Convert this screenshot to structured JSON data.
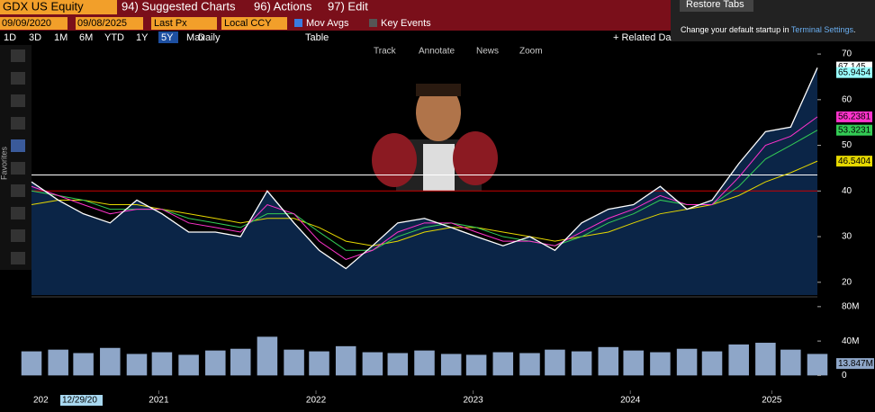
{
  "ui": {
    "ticker": "GDX US Equity",
    "menu": [
      "94) Suggested Charts",
      "96) Actions",
      "97) Edit"
    ],
    "start_date": "09/09/2020",
    "end_date": "09/08/2025",
    "field": "Last Px",
    "currency": "Local CCY",
    "mov_avgs": "Mov Avgs",
    "key_events": "Key Events",
    "ranges": [
      "1D",
      "3D",
      "1M",
      "6M",
      "YTD",
      "1Y",
      "5Y",
      "Max"
    ],
    "frequency": "Daily",
    "table": "Table",
    "related": "+ Related Da",
    "popup_button": "Restore Tabs",
    "popup_text": "Change your default startup in ",
    "popup_link": "Terminal Settings",
    "popup_end": ".",
    "chart_tools": [
      "Track",
      "Annotate",
      "News",
      "Zoom"
    ],
    "favorites": "Favorites",
    "cursor_date": "12/29/20",
    "cursor_prefix": "202"
  },
  "chart_data": {
    "type": "line",
    "xlim": [
      2020.69,
      2025.69
    ],
    "xticks": [
      {
        "value": 2021.5,
        "label": "2021"
      },
      {
        "value": 2022.5,
        "label": "2022"
      },
      {
        "value": 2023.5,
        "label": "2023"
      },
      {
        "value": 2024.5,
        "label": "2024"
      },
      {
        "value": 2025.4,
        "label": "2025"
      }
    ],
    "ylim": [
      17.2,
      71
    ],
    "yticks": [
      20,
      30,
      40,
      50,
      60,
      70
    ],
    "x": [
      2020.69,
      2020.86,
      2021.02,
      2021.19,
      2021.36,
      2021.52,
      2021.69,
      2021.86,
      2022.02,
      2022.19,
      2022.36,
      2022.52,
      2022.69,
      2022.86,
      2023.02,
      2023.19,
      2023.36,
      2023.52,
      2023.69,
      2023.86,
      2024.02,
      2024.19,
      2024.36,
      2024.52,
      2024.69,
      2024.86,
      2025.02,
      2025.19,
      2025.36,
      2025.52,
      2025.69
    ],
    "series": [
      {
        "name": "Last Px",
        "color": "#ffffff",
        "values": [
          42,
          38,
          35,
          33,
          38,
          35,
          31,
          31,
          30,
          40,
          33,
          27,
          23,
          28,
          33,
          34,
          32,
          30,
          28,
          30,
          27,
          33,
          36,
          37,
          41,
          36,
          38,
          46,
          53,
          54,
          67
        ]
      },
      {
        "color": "#ff33cc",
        "values": [
          41,
          39,
          37,
          35,
          36,
          36,
          33,
          32,
          31,
          37,
          35,
          29,
          25,
          27,
          31,
          33,
          33,
          31,
          29,
          29,
          28,
          31,
          34,
          36,
          39,
          37,
          37,
          43,
          50,
          52,
          56.2381
        ]
      },
      {
        "color": "#33cc55",
        "values": [
          40,
          39,
          38,
          36,
          36,
          36,
          34,
          33,
          32,
          35,
          35,
          31,
          27,
          27,
          30,
          32,
          33,
          32,
          30,
          29,
          28,
          30,
          33,
          35,
          38,
          37,
          37,
          41,
          47,
          50,
          53.3231
        ]
      },
      {
        "color": "#e6d800",
        "values": [
          37,
          38,
          38,
          37,
          37,
          36,
          35,
          34,
          33,
          34,
          34,
          32,
          29,
          28,
          29,
          31,
          32,
          32,
          31,
          30,
          29,
          30,
          31,
          33,
          35,
          36,
          37,
          39,
          42,
          44,
          46.5404
        ]
      }
    ],
    "hlines": [
      {
        "value": 43.5,
        "color": "#ffffff"
      },
      {
        "value": 40,
        "color": "#cc0000"
      }
    ],
    "markers": [
      {
        "value": 67.145,
        "label": "67.145",
        "color": "#ffffff"
      },
      {
        "value": 65.9454,
        "label": "65.9454",
        "color": "#99ffff"
      },
      {
        "value": 56.2381,
        "label": "56.2381",
        "color": "#ff33cc"
      },
      {
        "value": 53.3231,
        "label": "53.3231",
        "color": "#33cc55"
      },
      {
        "value": 46.5404,
        "label": "46.5404",
        "color": "#e6d800"
      }
    ],
    "volume": {
      "color": "#8ea6c8",
      "ylim": [
        -8,
        83
      ],
      "yticks": [
        0,
        {
          "value": 40,
          "label": "40M"
        },
        {
          "value": 80,
          "label": "80M"
        }
      ],
      "values": [
        28,
        30,
        26,
        32,
        25,
        27,
        24,
        29,
        31,
        45,
        30,
        28,
        34,
        27,
        26,
        29,
        25,
        24,
        27,
        26,
        30,
        28,
        33,
        29,
        27,
        31,
        28,
        36,
        38,
        30,
        25
      ],
      "marker": {
        "value": 13.847,
        "label": "13.847M"
      }
    }
  }
}
